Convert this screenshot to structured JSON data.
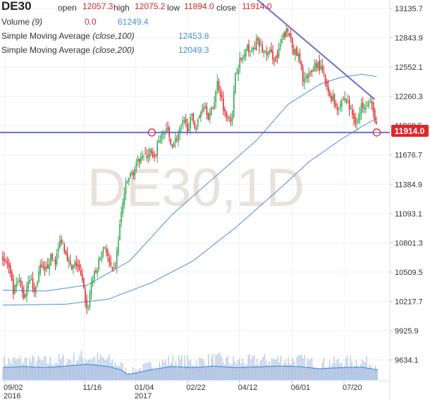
{
  "symbol": "DE30",
  "ohlc": {
    "open_label": "open",
    "open": "12057.3",
    "high_label": "high",
    "high": "12075.2",
    "low_label": "low",
    "low": "11894.0",
    "close_label": "close",
    "close": "11914.0"
  },
  "volume": {
    "label": "Volume",
    "param": "(9)",
    "value1": "0.0",
    "value2": "61249.4"
  },
  "sma100": {
    "label": "Simple Moving Average",
    "param": "(close,100)",
    "value": "12453.8"
  },
  "sma200": {
    "label": "Simple Moving Average",
    "param": "(close,200)",
    "value": "12049.3"
  },
  "watermark": "DE30,1D",
  "price_badge": "11914.0",
  "colors": {
    "up": "#2fa84f",
    "down": "#e0262b",
    "sma": "#4a8fd9",
    "trendline": "#6b6fc6",
    "volume": "#9fb8df",
    "badge": "#e0262b"
  },
  "chart_data": {
    "type": "candlestick",
    "ylim": [
      9500,
      13300
    ],
    "y_ticks": [
      "13135.7",
      "12843.9",
      "12552.1",
      "12260.3",
      "11968.5",
      "11676.7",
      "11384.9",
      "11093.1",
      "10801.3",
      "10509.5",
      "10217.7",
      "9925.9",
      "9634.1"
    ],
    "y_tick_values": [
      13135.7,
      12843.9,
      12552.1,
      12260.3,
      11968.5,
      11676.7,
      11384.9,
      11093.1,
      10801.3,
      10509.5,
      10217.7,
      9925.9,
      9634.1
    ],
    "x_ticks": [
      {
        "label": "09/02",
        "sublabel": "2016",
        "day": 2
      },
      {
        "label": "11/16",
        "sublabel": "",
        "day": 77
      },
      {
        "label": "01/04",
        "sublabel": "2017",
        "day": 126
      },
      {
        "label": "02/22",
        "sublabel": "",
        "day": 175
      },
      {
        "label": "04/12",
        "sublabel": "",
        "day": 224
      },
      {
        "label": "06/01",
        "sublabel": "",
        "day": 274
      },
      {
        "label": "07/20",
        "sublabel": "",
        "day": 323
      }
    ],
    "date_range": {
      "start": "2016-08-31",
      "end": "2017-08-18"
    },
    "price_path": [
      [
        0,
        10650
      ],
      [
        5,
        10580
      ],
      [
        10,
        10300
      ],
      [
        15,
        10420
      ],
      [
        20,
        10250
      ],
      [
        25,
        10480
      ],
      [
        30,
        10300
      ],
      [
        35,
        10550
      ],
      [
        40,
        10500
      ],
      [
        45,
        10650
      ],
      [
        50,
        10620
      ],
      [
        55,
        10850
      ],
      [
        60,
        10700
      ],
      [
        65,
        10520
      ],
      [
        70,
        10600
      ],
      [
        75,
        10420
      ],
      [
        78,
        10250
      ],
      [
        80,
        10100
      ],
      [
        84,
        10430
      ],
      [
        88,
        10500
      ],
      [
        92,
        10650
      ],
      [
        96,
        10800
      ],
      [
        100,
        10620
      ],
      [
        104,
        10480
      ],
      [
        107,
        10600
      ],
      [
        111,
        11000
      ],
      [
        115,
        11300
      ],
      [
        119,
        11450
      ],
      [
        123,
        11500
      ],
      [
        127,
        11580
      ],
      [
        131,
        11700
      ],
      [
        135,
        11650
      ],
      [
        139,
        11720
      ],
      [
        143,
        11600
      ],
      [
        147,
        11820
      ],
      [
        151,
        11870
      ],
      [
        155,
        11950
      ],
      [
        159,
        11780
      ],
      [
        163,
        11820
      ],
      [
        167,
        11900
      ],
      [
        171,
        12000
      ],
      [
        175,
        11950
      ],
      [
        179,
        12050
      ],
      [
        183,
        11950
      ],
      [
        187,
        12100
      ],
      [
        191,
        12200
      ],
      [
        195,
        12050
      ],
      [
        199,
        12150
      ],
      [
        203,
        12400
      ],
      [
        207,
        12250
      ],
      [
        211,
        12050
      ],
      [
        214,
        12100
      ],
      [
        217,
        12000
      ],
      [
        220,
        12500
      ],
      [
        224,
        12600
      ],
      [
        228,
        12650
      ],
      [
        232,
        12750
      ],
      [
        236,
        12700
      ],
      [
        240,
        12800
      ],
      [
        244,
        12750
      ],
      [
        248,
        12680
      ],
      [
        252,
        12700
      ],
      [
        256,
        12650
      ],
      [
        260,
        12650
      ],
      [
        264,
        12820
      ],
      [
        268,
        12900
      ],
      [
        272,
        12870
      ],
      [
        276,
        12700
      ],
      [
        280,
        12650
      ],
      [
        284,
        12450
      ],
      [
        288,
        12420
      ],
      [
        292,
        12500
      ],
      [
        296,
        12600
      ],
      [
        300,
        12550
      ],
      [
        304,
        12450
      ],
      [
        308,
        12280
      ],
      [
        312,
        12250
      ],
      [
        316,
        12150
      ],
      [
        320,
        12200
      ],
      [
        324,
        12250
      ],
      [
        328,
        12150
      ],
      [
        332,
        12050
      ],
      [
        336,
        12000
      ],
      [
        340,
        12180
      ],
      [
        344,
        12200
      ],
      [
        348,
        12200
      ],
      [
        352,
        12050
      ],
      [
        355,
        11914
      ]
    ],
    "sma100_path": [
      [
        0,
        10330
      ],
      [
        40,
        10320
      ],
      [
        80,
        10380
      ],
      [
        120,
        10620
      ],
      [
        160,
        11080
      ],
      [
        200,
        11450
      ],
      [
        240,
        11820
      ],
      [
        270,
        12180
      ],
      [
        300,
        12380
      ],
      [
        320,
        12450
      ],
      [
        340,
        12480
      ],
      [
        355,
        12454
      ]
    ],
    "sma200_path": [
      [
        0,
        10180
      ],
      [
        60,
        10190
      ],
      [
        100,
        10240
      ],
      [
        140,
        10400
      ],
      [
        180,
        10620
      ],
      [
        220,
        10950
      ],
      [
        260,
        11320
      ],
      [
        290,
        11610
      ],
      [
        320,
        11830
      ],
      [
        340,
        11960
      ],
      [
        355,
        12049
      ]
    ],
    "trendlines": [
      {
        "from": [
          0,
          11900
        ],
        "to": [
          355,
          11900
        ]
      },
      {
        "from": [
          230,
          13320
        ],
        "to": [
          352,
          12230
        ]
      }
    ],
    "markers": [
      {
        "day": 141,
        "price": 11900
      },
      {
        "day": 354,
        "price": 11900
      }
    ],
    "volume_profile": [
      [
        0,
        0.55
      ],
      [
        20,
        0.6
      ],
      [
        40,
        0.55
      ],
      [
        60,
        0.62
      ],
      [
        80,
        0.7
      ],
      [
        100,
        0.6
      ],
      [
        112,
        0.45
      ],
      [
        118,
        0.25
      ],
      [
        125,
        0.3
      ],
      [
        140,
        0.45
      ],
      [
        160,
        0.6
      ],
      [
        180,
        0.55
      ],
      [
        200,
        0.62
      ],
      [
        220,
        0.55
      ],
      [
        240,
        0.58
      ],
      [
        260,
        0.62
      ],
      [
        280,
        0.6
      ],
      [
        300,
        0.5
      ],
      [
        320,
        0.55
      ],
      [
        340,
        0.57
      ],
      [
        355,
        0.45
      ]
    ]
  }
}
